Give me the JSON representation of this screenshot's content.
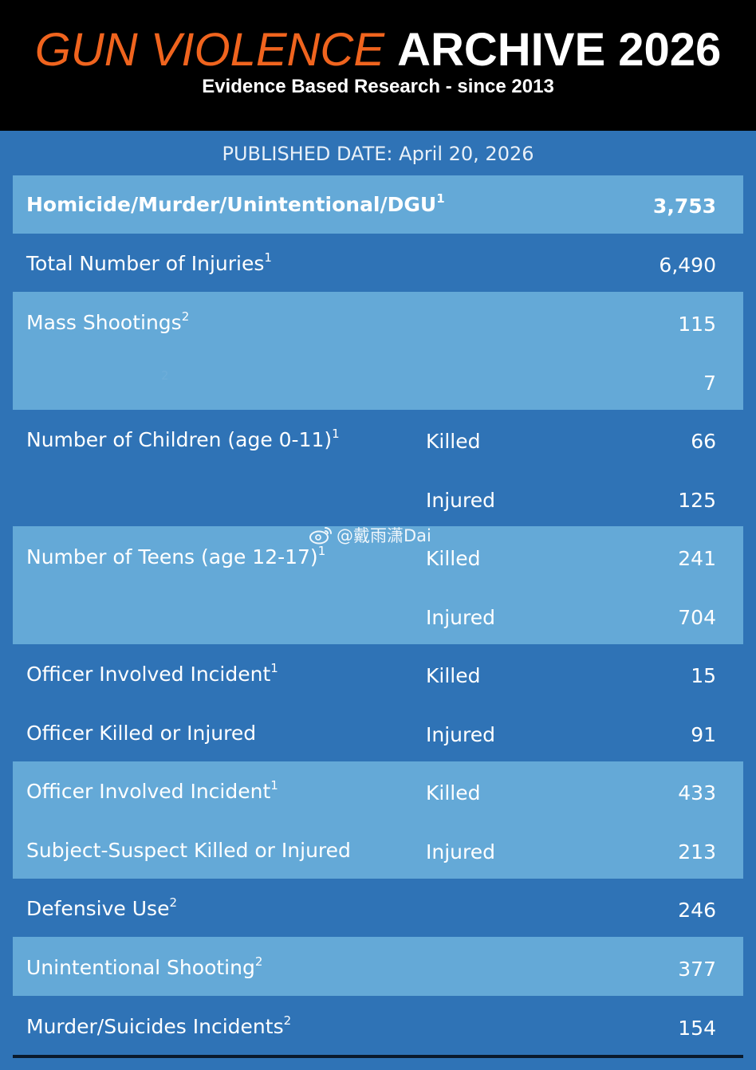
{
  "header": {
    "title_part1": "GUN VIOLENCE",
    "title_part2": "ARCHIVE 2026",
    "subtitle": "Evidence Based Research - since 2013"
  },
  "published_date": "PUBLISHED DATE: April 20, 2026",
  "rows": [
    {
      "label": "Homicide/Murder/Unintentional/DGU",
      "sup": "1",
      "sub": "",
      "value": "3,753"
    },
    {
      "label": "Total Number of Injuries",
      "sup": "1",
      "sub": "",
      "value": "6,490"
    },
    {
      "label": "Mass Shootings",
      "sup": "2",
      "sub": "",
      "value": "115"
    },
    {
      "label": "",
      "sup": "2",
      "sub": "",
      "value": "7"
    },
    {
      "label": "Number of Children (age 0-11)",
      "sup": "1",
      "sub": "Killed",
      "value": "66"
    },
    {
      "label": "",
      "sup": "",
      "sub": "Injured",
      "value": "125"
    },
    {
      "label": "Number of Teens (age 12-17)",
      "sup": "1",
      "sub": "Killed",
      "value": "241"
    },
    {
      "label": "",
      "sup": "",
      "sub": "Injured",
      "value": "704"
    },
    {
      "label": "Officer Involved Incident",
      "sup": "1",
      "sub": "Killed",
      "value": "15"
    },
    {
      "label": "Officer Killed or Injured",
      "sup": "",
      "sub": "Injured",
      "value": "91"
    },
    {
      "label": "Officer Involved Incident",
      "sup": "1",
      "sub": "Killed",
      "value": "433"
    },
    {
      "label": "Subject-Suspect Killed or Injured",
      "sup": "",
      "sub": "Injured",
      "value": "213"
    },
    {
      "label": "Defensive Use",
      "sup": "2",
      "sub": "",
      "value": "246"
    },
    {
      "label": "Unintentional Shooting",
      "sup": "2",
      "sub": "",
      "value": "377"
    },
    {
      "label": "Murder/Suicides Incidents",
      "sup": "2",
      "sub": "",
      "value": "154"
    }
  ],
  "watermark": "@戴雨潇Dai",
  "colors": {
    "header_bg": "#000000",
    "title_accent": "#f0641e",
    "page_bg": "#2f73b6",
    "band_bg": "#64a9d7"
  }
}
